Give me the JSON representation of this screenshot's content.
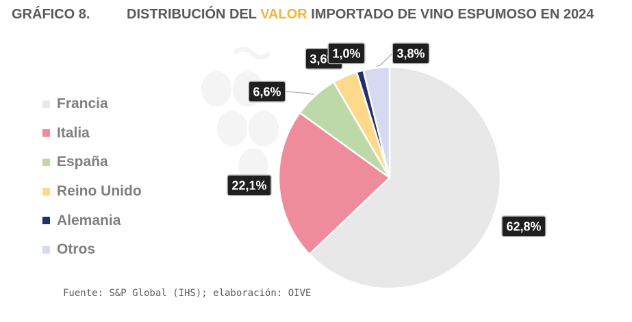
{
  "header": {
    "figure_label": "GRÁFICO 8.",
    "title_before": "DISTRIBUCIÓN DEL ",
    "title_highlight": "VALOR",
    "title_after": " IMPORTADO DE VINO ESPUMOSO EN 2024"
  },
  "source": "Fuente: S&P Global (IHS); elaboración: OIVE",
  "colors": {
    "title_text": "#595959",
    "highlight": "#F2B43A",
    "legend_text": "#7F7F7F",
    "label_box": "#1F1F1F"
  },
  "chart_data": {
    "type": "pie",
    "title": "DISTRIBUCIÓN DEL VALOR IMPORTADO DE VINO ESPUMOSO EN 2024",
    "categories": [
      "Francia",
      "Italia",
      "España",
      "Reino Unido",
      "Alemania",
      "Otros"
    ],
    "values": [
      62.8,
      22.1,
      6.6,
      3.6,
      1.0,
      3.8
    ],
    "data_labels": [
      "62,8%",
      "22,1%",
      "6,6%",
      "3,6%",
      "1,0%",
      "3,8%"
    ],
    "colors": [
      "#E8E8E8",
      "#EE8C9C",
      "#BDD9A8",
      "#FDD98B",
      "#24306B",
      "#D7D9F0"
    ],
    "legend_position": "left",
    "start_angle_deg": 0,
    "direction": "clockwise"
  }
}
